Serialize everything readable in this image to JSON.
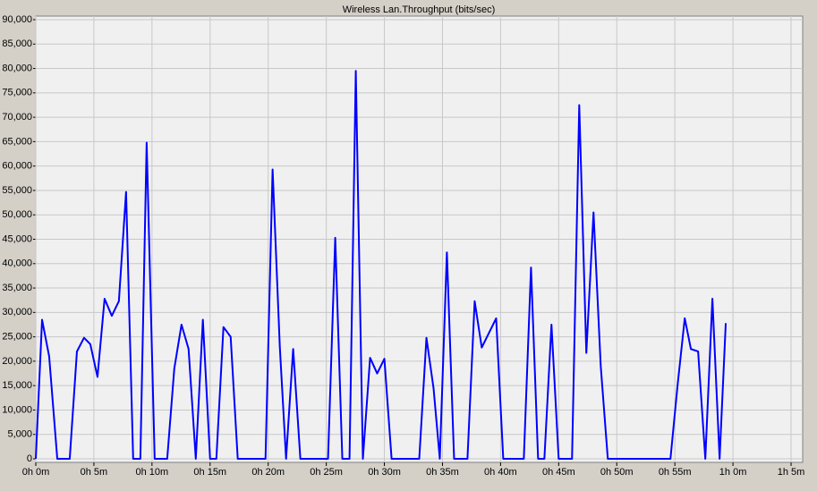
{
  "chart_data": {
    "type": "line",
    "title": "Wireless Lan.Throughput (bits/sec)",
    "x": [
      0,
      0.54,
      1.15,
      1.85,
      2.92,
      3.54,
      4.15,
      4.69,
      5.31,
      5.92,
      6.54,
      7.15,
      7.77,
      8.38,
      9.0,
      9.54,
      10.23,
      11.31,
      11.92,
      12.54,
      13.15,
      13.77,
      14.38,
      15.0,
      15.54,
      16.15,
      16.77,
      17.38,
      19.77,
      20.38,
      21.0,
      21.54,
      22.15,
      22.77,
      25.15,
      25.77,
      26.38,
      27.0,
      27.54,
      28.15,
      28.77,
      29.38,
      30.0,
      30.62,
      33.0,
      33.62,
      34.23,
      34.77,
      35.38,
      36.0,
      37.15,
      37.77,
      38.38,
      39.62,
      40.23,
      42.0,
      42.62,
      43.23,
      43.77,
      44.38,
      45.0,
      46.15,
      46.77,
      47.38,
      48.0,
      48.62,
      49.23,
      54.62,
      55.23,
      55.85,
      56.38,
      57.0,
      57.62,
      58.23,
      58.85,
      59.38
    ],
    "values": [
      0,
      28500,
      21000,
      0,
      0,
      22000,
      24800,
      23500,
      16800,
      32800,
      29300,
      32300,
      54700,
      0,
      0,
      64800,
      0,
      0,
      18500,
      27500,
      22500,
      0,
      28500,
      0,
      0,
      27000,
      25000,
      0,
      0,
      59300,
      23000,
      0,
      22500,
      0,
      0,
      45300,
      0,
      0,
      79500,
      0,
      20700,
      17500,
      20500,
      0,
      0,
      24800,
      14500,
      0,
      42300,
      0,
      0,
      32300,
      22800,
      28800,
      0,
      0,
      39200,
      0,
      0,
      27500,
      0,
      0,
      72500,
      21700,
      50500,
      19000,
      0,
      0,
      15000,
      28800,
      22500,
      22000,
      0,
      32800,
      0,
      27800
    ],
    "color": "#0000ff",
    "xlim": [
      0,
      66
    ],
    "ylim": [
      0,
      90000
    ],
    "xticks": [
      {
        "value": 0,
        "label": "0h 0m"
      },
      {
        "value": 5,
        "label": "0h 5m"
      },
      {
        "value": 10,
        "label": "0h 10m"
      },
      {
        "value": 15,
        "label": "0h 15m"
      },
      {
        "value": 20,
        "label": "0h 20m"
      },
      {
        "value": 25,
        "label": "0h 25m"
      },
      {
        "value": 30,
        "label": "0h 30m"
      },
      {
        "value": 35,
        "label": "0h 35m"
      },
      {
        "value": 40,
        "label": "0h 40m"
      },
      {
        "value": 45,
        "label": "0h 45m"
      },
      {
        "value": 50,
        "label": "0h 50m"
      },
      {
        "value": 55,
        "label": "0h 55m"
      },
      {
        "value": 60,
        "label": "1h 0m"
      },
      {
        "value": 65,
        "label": "1h 5m"
      }
    ],
    "yticks": [
      0,
      {
        "value": 5000,
        "label": "5,000"
      },
      {
        "value": 10000,
        "label": "10,000"
      },
      {
        "value": 15000,
        "label": "15,000"
      },
      {
        "value": 20000,
        "label": "20,000"
      },
      {
        "value": 25000,
        "label": "25,000"
      },
      {
        "value": 30000,
        "label": "30,000"
      },
      {
        "value": 35000,
        "label": "35,000"
      },
      {
        "value": 40000,
        "label": "40,000"
      },
      {
        "value": 45000,
        "label": "45,000"
      },
      {
        "value": 50000,
        "label": "50,000"
      },
      {
        "value": 55000,
        "label": "55,000"
      },
      {
        "value": 60000,
        "label": "60,000"
      },
      {
        "value": 65000,
        "label": "65,000"
      },
      {
        "value": 70000,
        "label": "70,000"
      },
      {
        "value": 75000,
        "label": "75,000"
      },
      {
        "value": 80000,
        "label": "80,000"
      },
      {
        "value": 85000,
        "label": "85,000"
      },
      {
        "value": 90000,
        "label": "90,000"
      }
    ],
    "grid": true
  }
}
